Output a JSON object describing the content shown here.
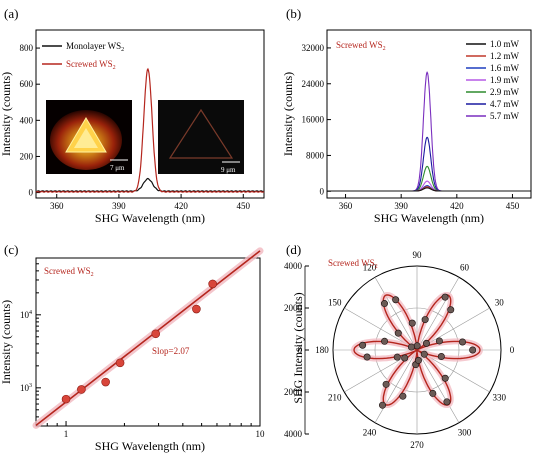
{
  "colors": {
    "black": "#111111",
    "red": "#b5261e",
    "p_1_0": "#111111",
    "p_1_2": "#c0392b",
    "p_1_6": "#1f3fbf",
    "p_1_9": "#b65ae6",
    "p_2_9": "#2e8b2e",
    "p_4_7": "#1a1aa0",
    "p_5_7": "#7a2fbf",
    "glow": "#f2b8c0"
  },
  "chart_data": [
    {
      "panel": "(a)",
      "type": "line",
      "xlabel": "SHG Wavelength (nm)",
      "ylabel": "Intensity (counts)",
      "xlim": [
        350,
        460
      ],
      "ylim": [
        -30,
        900
      ],
      "xticks": [
        360,
        390,
        420,
        450
      ],
      "yticks": [
        0,
        200,
        400,
        600,
        800
      ],
      "series": [
        {
          "name": "Monolayer WS",
          "sub": "2",
          "color": "#111111",
          "peak_x": 404,
          "peak_y": 68,
          "width": 2.2,
          "baseline": 8
        },
        {
          "name": "Screwed WS",
          "sub": "2",
          "color": "#b5261e",
          "peak_x": 404,
          "peak_y": 680,
          "width": 2.0,
          "baseline": 4
        }
      ],
      "insets": [
        {
          "name": "inset-bright-triangle",
          "scale_label": "7 μm"
        },
        {
          "name": "inset-dim-triangle",
          "scale_label": "9 μm"
        }
      ],
      "legend_position": "top-left"
    },
    {
      "panel": "(b)",
      "type": "line",
      "title": "Screwed WS",
      "title_sub": "2",
      "xlabel": "SHG Wavelength (nm)",
      "ylabel": "Intensity (counts)",
      "xlim": [
        350,
        460
      ],
      "ylim": [
        -1500,
        36000
      ],
      "xticks": [
        360,
        390,
        420,
        450
      ],
      "yticks": [
        0,
        8000,
        16000,
        24000,
        32000
      ],
      "peak_x": 404,
      "width": 2.0,
      "series": [
        {
          "name": "1.0 mW",
          "color": "#111111",
          "peak_y": 700
        },
        {
          "name": "1.2 mW",
          "color": "#c0392b",
          "peak_y": 950
        },
        {
          "name": "1.6 mW",
          "color": "#1f3fbf",
          "peak_y": 1200
        },
        {
          "name": "1.9 mW",
          "color": "#b65ae6",
          "peak_y": 2200
        },
        {
          "name": "2.9 mW",
          "color": "#2e8b2e",
          "peak_y": 5500
        },
        {
          "name": "4.7 mW",
          "color": "#1a1aa0",
          "peak_y": 12000
        },
        {
          "name": "5.7 mW",
          "color": "#7a2fbf",
          "peak_y": 26500
        }
      ],
      "legend_position": "top-right"
    },
    {
      "panel": "(c)",
      "type": "scatter",
      "title": "Screwed WS",
      "title_sub": "2",
      "xlabel": "SHG Wavelength (nm)",
      "ylabel": "Intensity (counts)",
      "xscale": "log",
      "yscale": "log",
      "xlim": [
        0.7,
        10
      ],
      "ylim": [
        300,
        60000
      ],
      "xticks": [
        1,
        10
      ],
      "ytick_exponents": [
        3,
        4
      ],
      "points": [
        {
          "x": 1.0,
          "y": 700
        },
        {
          "x": 1.2,
          "y": 950
        },
        {
          "x": 1.6,
          "y": 1200
        },
        {
          "x": 1.9,
          "y": 2200
        },
        {
          "x": 2.9,
          "y": 5500
        },
        {
          "x": 4.7,
          "y": 12000
        },
        {
          "x": 5.7,
          "y": 26500
        }
      ],
      "fit": {
        "slope": 2.07,
        "intercept_y_at_x1": 640,
        "x_range": [
          0.7,
          10
        ]
      },
      "annotation": "Slop=2.07"
    },
    {
      "panel": "(d)",
      "type": "polar",
      "title": "Screwed WS",
      "title_sub": "2",
      "ylabel": "SHG Intensity (counts)",
      "rlim": [
        0,
        4000
      ],
      "rticks_upper": [
        0,
        2000,
        4000
      ],
      "rticks_lower": [
        2000,
        4000
      ],
      "angle_ticks": [
        0,
        30,
        60,
        90,
        120,
        150,
        180,
        210,
        240,
        270,
        300,
        330
      ],
      "fit": {
        "amplitude": 3000,
        "petals": 6
      },
      "points": [
        {
          "angle": 0,
          "r": 2650
        },
        {
          "angle": 10,
          "r": 2200
        },
        {
          "angle": 22,
          "r": 1150
        },
        {
          "angle": 35,
          "r": 550
        },
        {
          "angle": 50,
          "r": 2500
        },
        {
          "angle": 62,
          "r": 2850
        },
        {
          "angle": 75,
          "r": 1500
        },
        {
          "angle": 88,
          "r": 200
        },
        {
          "angle": 100,
          "r": 1300
        },
        {
          "angle": 113,
          "r": 2600
        },
        {
          "angle": 125,
          "r": 2700
        },
        {
          "angle": 138,
          "r": 1200
        },
        {
          "angle": 152,
          "r": 300
        },
        {
          "angle": 165,
          "r": 1600
        },
        {
          "angle": 175,
          "r": 2600
        },
        {
          "angle": 188,
          "r": 2400
        },
        {
          "angle": 200,
          "r": 1000
        },
        {
          "angle": 213,
          "r": 700
        },
        {
          "angle": 228,
          "r": 2200
        },
        {
          "angle": 238,
          "r": 3100
        },
        {
          "angle": 253,
          "r": 2300
        },
        {
          "angle": 265,
          "r": 700
        },
        {
          "angle": 278,
          "r": 500
        },
        {
          "angle": 290,
          "r": 2200
        },
        {
          "angle": 300,
          "r": 2850
        },
        {
          "angle": 315,
          "r": 1900
        },
        {
          "angle": 330,
          "r": 400
        },
        {
          "angle": 345,
          "r": 1200
        }
      ]
    }
  ]
}
